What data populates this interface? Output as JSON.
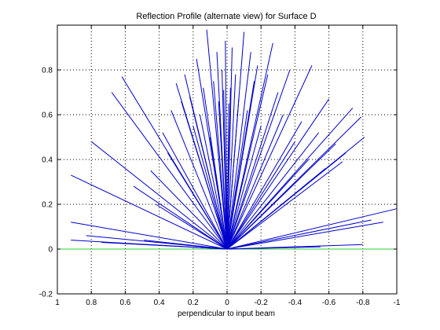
{
  "chart_data": {
    "type": "line",
    "title": "Reflection Profile (alternate view) for Surface D",
    "xlabel": "perpendicular to input beam",
    "ylabel": "",
    "xlim": [
      1,
      -1
    ],
    "ylim": [
      -0.2,
      1.0
    ],
    "x_axis_reversed": true,
    "grid": true,
    "x_ticks": [
      1,
      0.8,
      0.6,
      0.4,
      0.2,
      0,
      -0.2,
      -0.4,
      -0.6,
      -0.8,
      -1
    ],
    "x_tick_labels": [
      "1",
      "0.8",
      "0.6",
      "0.4",
      "0.2",
      "0",
      "-0.2",
      "-0.4",
      "-0.6",
      "-0.8",
      "-1"
    ],
    "y_ticks": [
      -0.2,
      0,
      0.2,
      0.4,
      0.6,
      0.8
    ],
    "y_tick_labels": [
      "-0.2",
      "0",
      "0.2",
      "0.4",
      "0.6",
      "0.8"
    ],
    "series_color": "#0000cc",
    "baseline_color": "#33cc33",
    "baseline": {
      "x": [
        1,
        -1
      ],
      "y": [
        0,
        0
      ]
    },
    "origin": [
      0,
      0
    ],
    "ray_endpoints": [
      [
        0.92,
        0.33
      ],
      [
        0.92,
        0.12
      ],
      [
        0.92,
        0.04
      ],
      [
        0.8,
        0.48
      ],
      [
        0.83,
        0.06
      ],
      [
        0.74,
        0.03
      ],
      [
        0.68,
        0.7
      ],
      [
        0.62,
        0.77
      ],
      [
        0.55,
        0.28
      ],
      [
        0.49,
        0.04
      ],
      [
        0.45,
        0.35
      ],
      [
        0.42,
        0.2
      ],
      [
        0.38,
        0.52
      ],
      [
        0.35,
        0.43
      ],
      [
        0.33,
        0.62
      ],
      [
        0.3,
        0.74
      ],
      [
        0.27,
        0.66
      ],
      [
        0.25,
        0.78
      ],
      [
        0.22,
        0.68
      ],
      [
        0.2,
        0.55
      ],
      [
        0.18,
        0.85
      ],
      [
        0.16,
        0.6
      ],
      [
        0.14,
        0.72
      ],
      [
        0.12,
        0.98
      ],
      [
        0.1,
        0.5
      ],
      [
        0.08,
        0.75
      ],
      [
        0.06,
        0.88
      ],
      [
        0.05,
        0.66
      ],
      [
        0.03,
        0.8
      ],
      [
        0.02,
        0.71
      ],
      [
        0.01,
        0.93
      ],
      [
        -0.01,
        0.65
      ],
      [
        -0.02,
        0.72
      ],
      [
        -0.03,
        0.9
      ],
      [
        -0.05,
        0.78
      ],
      [
        -0.07,
        0.68
      ],
      [
        -0.1,
        0.97
      ],
      [
        -0.12,
        0.62
      ],
      [
        -0.14,
        0.88
      ],
      [
        -0.16,
        0.75
      ],
      [
        -0.18,
        0.82
      ],
      [
        -0.2,
        0.55
      ],
      [
        -0.24,
        0.78
      ],
      [
        -0.27,
        0.92
      ],
      [
        -0.3,
        0.7
      ],
      [
        -0.33,
        0.6
      ],
      [
        -0.37,
        0.8
      ],
      [
        -0.4,
        0.48
      ],
      [
        -0.44,
        0.57
      ],
      [
        -0.48,
        0.4
      ],
      [
        -0.5,
        0.82
      ],
      [
        -0.54,
        0.52
      ],
      [
        -0.58,
        0.36
      ],
      [
        -0.6,
        0.67
      ],
      [
        -0.64,
        0.47
      ],
      [
        -0.68,
        0.39
      ],
      [
        -0.7,
        0.43
      ],
      [
        -0.74,
        0.63
      ],
      [
        -0.79,
        0.59
      ],
      [
        -0.81,
        0.5
      ],
      [
        -0.85,
        0.13
      ],
      [
        -0.92,
        0.12
      ],
      [
        -1.0,
        0.18
      ],
      [
        -0.8,
        0.02
      ],
      [
        -0.55,
        0.01
      ]
    ]
  }
}
